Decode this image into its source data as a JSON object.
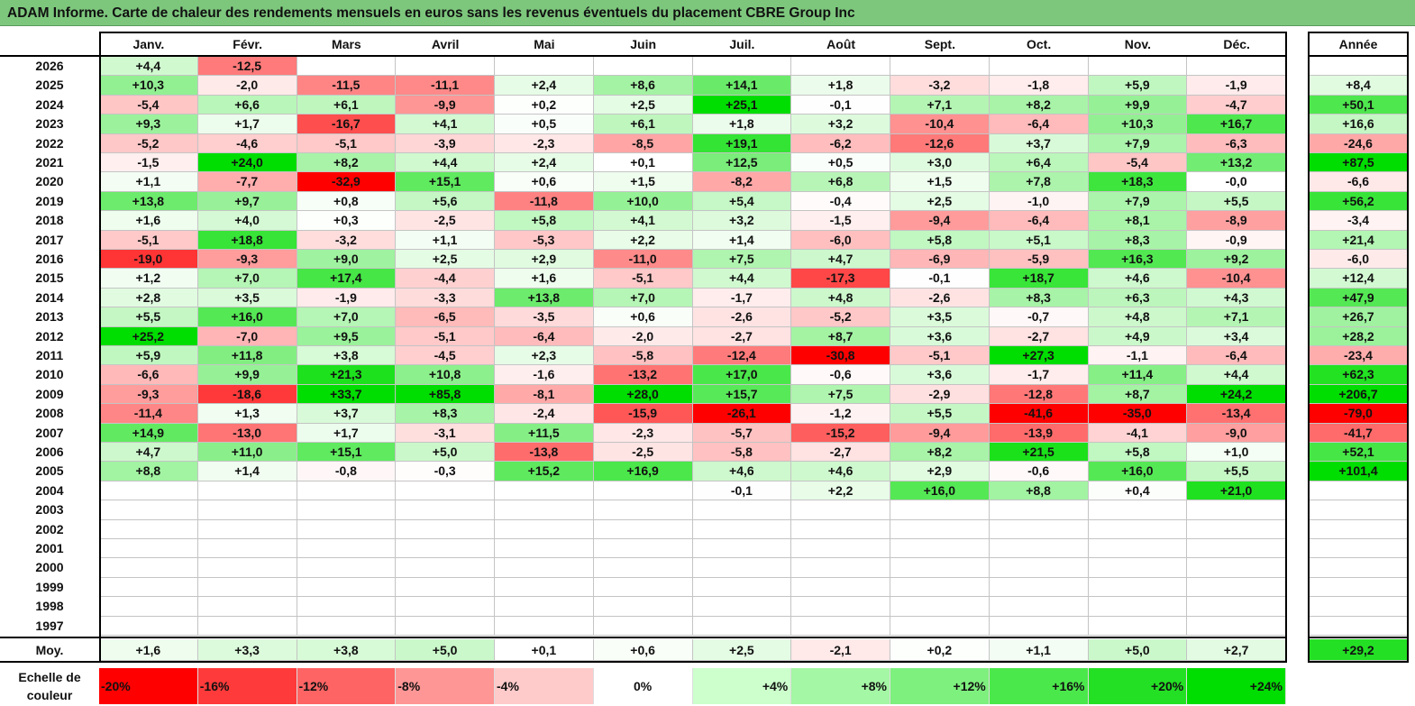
{
  "title": "ADAM Informe. Carte de chaleur des rendements mensuels en euros sans les revenus éventuels du placement CBRE Group Inc",
  "chart_data": {
    "type": "heatmap",
    "title": "ADAM Informe. Carte de chaleur des rendements mensuels en euros sans les revenus éventuels du placement CBRE Group Inc",
    "months": [
      "Janv.",
      "Févr.",
      "Mars",
      "Avril",
      "Mai",
      "Juin",
      "Juil.",
      "Août",
      "Sept.",
      "Oct.",
      "Nov.",
      "Déc."
    ],
    "year_header": "Année",
    "rows": [
      {
        "year": "2026",
        "values": [
          "+4,4",
          "-12,5",
          "",
          "",
          "",
          "",
          "",
          "",
          "",
          "",
          "",
          ""
        ],
        "annual": ""
      },
      {
        "year": "2025",
        "values": [
          "+10,3",
          "-2,0",
          "-11,5",
          "-11,1",
          "+2,4",
          "+8,6",
          "+14,1",
          "+1,8",
          "-3,2",
          "-1,8",
          "+5,9",
          "-1,9"
        ],
        "annual": "+8,4"
      },
      {
        "year": "2024",
        "values": [
          "-5,4",
          "+6,6",
          "+6,1",
          "-9,9",
          "+0,2",
          "+2,5",
          "+25,1",
          "-0,1",
          "+7,1",
          "+8,2",
          "+9,9",
          "-4,7"
        ],
        "annual": "+50,1"
      },
      {
        "year": "2023",
        "values": [
          "+9,3",
          "+1,7",
          "-16,7",
          "+4,1",
          "+0,5",
          "+6,1",
          "+1,8",
          "+3,2",
          "-10,4",
          "-6,4",
          "+10,3",
          "+16,7"
        ],
        "annual": "+16,6"
      },
      {
        "year": "2022",
        "values": [
          "-5,2",
          "-4,6",
          "-5,1",
          "-3,9",
          "-2,3",
          "-8,5",
          "+19,1",
          "-6,2",
          "-12,6",
          "+3,7",
          "+7,9",
          "-6,3"
        ],
        "annual": "-24,6"
      },
      {
        "year": "2021",
        "values": [
          "-1,5",
          "+24,0",
          "+8,2",
          "+4,4",
          "+2,4",
          "+0,1",
          "+12,5",
          "+0,5",
          "+3,0",
          "+6,4",
          "-5,4",
          "+13,2"
        ],
        "annual": "+87,5"
      },
      {
        "year": "2020",
        "values": [
          "+1,1",
          "-7,7",
          "-32,9",
          "+15,1",
          "+0,6",
          "+1,5",
          "-8,2",
          "+6,8",
          "+1,5",
          "+7,8",
          "+18,3",
          "-0,0"
        ],
        "annual": "-6,6"
      },
      {
        "year": "2019",
        "values": [
          "+13,8",
          "+9,7",
          "+0,8",
          "+5,6",
          "-11,8",
          "+10,0",
          "+5,4",
          "-0,4",
          "+2,5",
          "-1,0",
          "+7,9",
          "+5,5"
        ],
        "annual": "+56,2"
      },
      {
        "year": "2018",
        "values": [
          "+1,6",
          "+4,0",
          "+0,3",
          "-2,5",
          "+5,8",
          "+4,1",
          "+3,2",
          "-1,5",
          "-9,4",
          "-6,4",
          "+8,1",
          "-8,9"
        ],
        "annual": "-3,4"
      },
      {
        "year": "2017",
        "values": [
          "-5,1",
          "+18,8",
          "-3,2",
          "+1,1",
          "-5,3",
          "+2,2",
          "+1,4",
          "-6,0",
          "+5,8",
          "+5,1",
          "+8,3",
          "-0,9"
        ],
        "annual": "+21,4"
      },
      {
        "year": "2016",
        "values": [
          "-19,0",
          "-9,3",
          "+9,0",
          "+2,5",
          "+2,9",
          "-11,0",
          "+7,5",
          "+4,7",
          "-6,9",
          "-5,9",
          "+16,3",
          "+9,2"
        ],
        "annual": "-6,0"
      },
      {
        "year": "2015",
        "values": [
          "+1,2",
          "+7,0",
          "+17,4",
          "-4,4",
          "+1,6",
          "-5,1",
          "+4,4",
          "-17,3",
          "-0,1",
          "+18,7",
          "+4,6",
          "-10,4"
        ],
        "annual": "+12,4"
      },
      {
        "year": "2014",
        "values": [
          "+2,8",
          "+3,5",
          "-1,9",
          "-3,3",
          "+13,8",
          "+7,0",
          "-1,7",
          "+4,8",
          "-2,6",
          "+8,3",
          "+6,3",
          "+4,3"
        ],
        "annual": "+47,9"
      },
      {
        "year": "2013",
        "values": [
          "+5,5",
          "+16,0",
          "+7,0",
          "-6,5",
          "-3,5",
          "+0,6",
          "-2,6",
          "-5,2",
          "+3,5",
          "-0,7",
          "+4,8",
          "+7,1"
        ],
        "annual": "+26,7"
      },
      {
        "year": "2012",
        "values": [
          "+25,2",
          "-7,0",
          "+9,5",
          "-5,1",
          "-6,4",
          "-2,0",
          "-2,7",
          "+8,7",
          "+3,6",
          "-2,7",
          "+4,9",
          "+3,4"
        ],
        "annual": "+28,2"
      },
      {
        "year": "2011",
        "values": [
          "+5,9",
          "+11,8",
          "+3,8",
          "-4,5",
          "+2,3",
          "-5,8",
          "-12,4",
          "-30,8",
          "-5,1",
          "+27,3",
          "-1,1",
          "-6,4"
        ],
        "annual": "-23,4"
      },
      {
        "year": "2010",
        "values": [
          "-6,6",
          "+9,9",
          "+21,3",
          "+10,8",
          "-1,6",
          "-13,2",
          "+17,0",
          "-0,6",
          "+3,6",
          "-1,7",
          "+11,4",
          "+4,4"
        ],
        "annual": "+62,3"
      },
      {
        "year": "2009",
        "values": [
          "-9,3",
          "-18,6",
          "+33,7",
          "+85,8",
          "-8,1",
          "+28,0",
          "+15,7",
          "+7,5",
          "-2,9",
          "-12,8",
          "+8,7",
          "+24,2"
        ],
        "annual": "+206,7"
      },
      {
        "year": "2008",
        "values": [
          "-11,4",
          "+1,3",
          "+3,7",
          "+8,3",
          "-2,4",
          "-15,9",
          "-26,1",
          "-1,2",
          "+5,5",
          "-41,6",
          "-35,0",
          "-13,4"
        ],
        "annual": "-79,0"
      },
      {
        "year": "2007",
        "values": [
          "+14,9",
          "-13,0",
          "+1,7",
          "-3,1",
          "+11,5",
          "-2,3",
          "-5,7",
          "-15,2",
          "-9,4",
          "-13,9",
          "-4,1",
          "-9,0"
        ],
        "annual": "-41,7"
      },
      {
        "year": "2006",
        "values": [
          "+4,7",
          "+11,0",
          "+15,1",
          "+5,0",
          "-13,8",
          "-2,5",
          "-5,8",
          "-2,7",
          "+8,2",
          "+21,5",
          "+5,8",
          "+1,0"
        ],
        "annual": "+52,1"
      },
      {
        "year": "2005",
        "values": [
          "+8,8",
          "+1,4",
          "-0,8",
          "-0,3",
          "+15,2",
          "+16,9",
          "+4,6",
          "+4,6",
          "+2,9",
          "-0,6",
          "+16,0",
          "+5,5"
        ],
        "annual": "+101,4"
      },
      {
        "year": "2004",
        "values": [
          "",
          "",
          "",
          "",
          "",
          "",
          "-0,1",
          "+2,2",
          "+16,0",
          "+8,8",
          "+0,4",
          "+21,0"
        ],
        "annual": ""
      },
      {
        "year": "2003",
        "values": [
          "",
          "",
          "",
          "",
          "",
          "",
          "",
          "",
          "",
          "",
          "",
          ""
        ],
        "annual": ""
      },
      {
        "year": "2002",
        "values": [
          "",
          "",
          "",
          "",
          "",
          "",
          "",
          "",
          "",
          "",
          "",
          ""
        ],
        "annual": ""
      },
      {
        "year": "2001",
        "values": [
          "",
          "",
          "",
          "",
          "",
          "",
          "",
          "",
          "",
          "",
          "",
          ""
        ],
        "annual": ""
      },
      {
        "year": "2000",
        "values": [
          "",
          "",
          "",
          "",
          "",
          "",
          "",
          "",
          "",
          "",
          "",
          ""
        ],
        "annual": ""
      },
      {
        "year": "1999",
        "values": [
          "",
          "",
          "",
          "",
          "",
          "",
          "",
          "",
          "",
          "",
          "",
          ""
        ],
        "annual": ""
      },
      {
        "year": "1998",
        "values": [
          "",
          "",
          "",
          "",
          "",
          "",
          "",
          "",
          "",
          "",
          "",
          ""
        ],
        "annual": ""
      },
      {
        "year": "1997",
        "values": [
          "",
          "",
          "",
          "",
          "",
          "",
          "",
          "",
          "",
          "",
          "",
          ""
        ],
        "annual": ""
      }
    ],
    "average": {
      "label": "Moy.",
      "values": [
        "+1,6",
        "+3,3",
        "+3,8",
        "+5,0",
        "+0,1",
        "+0,6",
        "+2,5",
        "-2,1",
        "+0,2",
        "+1,1",
        "+5,0",
        "+2,7"
      ],
      "annual": "+29,2"
    },
    "color_scale": {
      "label": "Echelle de couleur",
      "steps": [
        "-20%",
        "-16%",
        "-12%",
        "-8%",
        "-4%",
        "0%",
        "+4%",
        "+8%",
        "+12%",
        "+16%",
        "+20%",
        "+24%"
      ],
      "colors": [
        "#ff0000",
        "#ff3a3a",
        "#ff6464",
        "#ff9696",
        "#ffcaca",
        "#ffffff",
        "#ccffcc",
        "#a4f7a4",
        "#7ef07e",
        "#4be84b",
        "#24e024",
        "#00dd00"
      ]
    }
  }
}
